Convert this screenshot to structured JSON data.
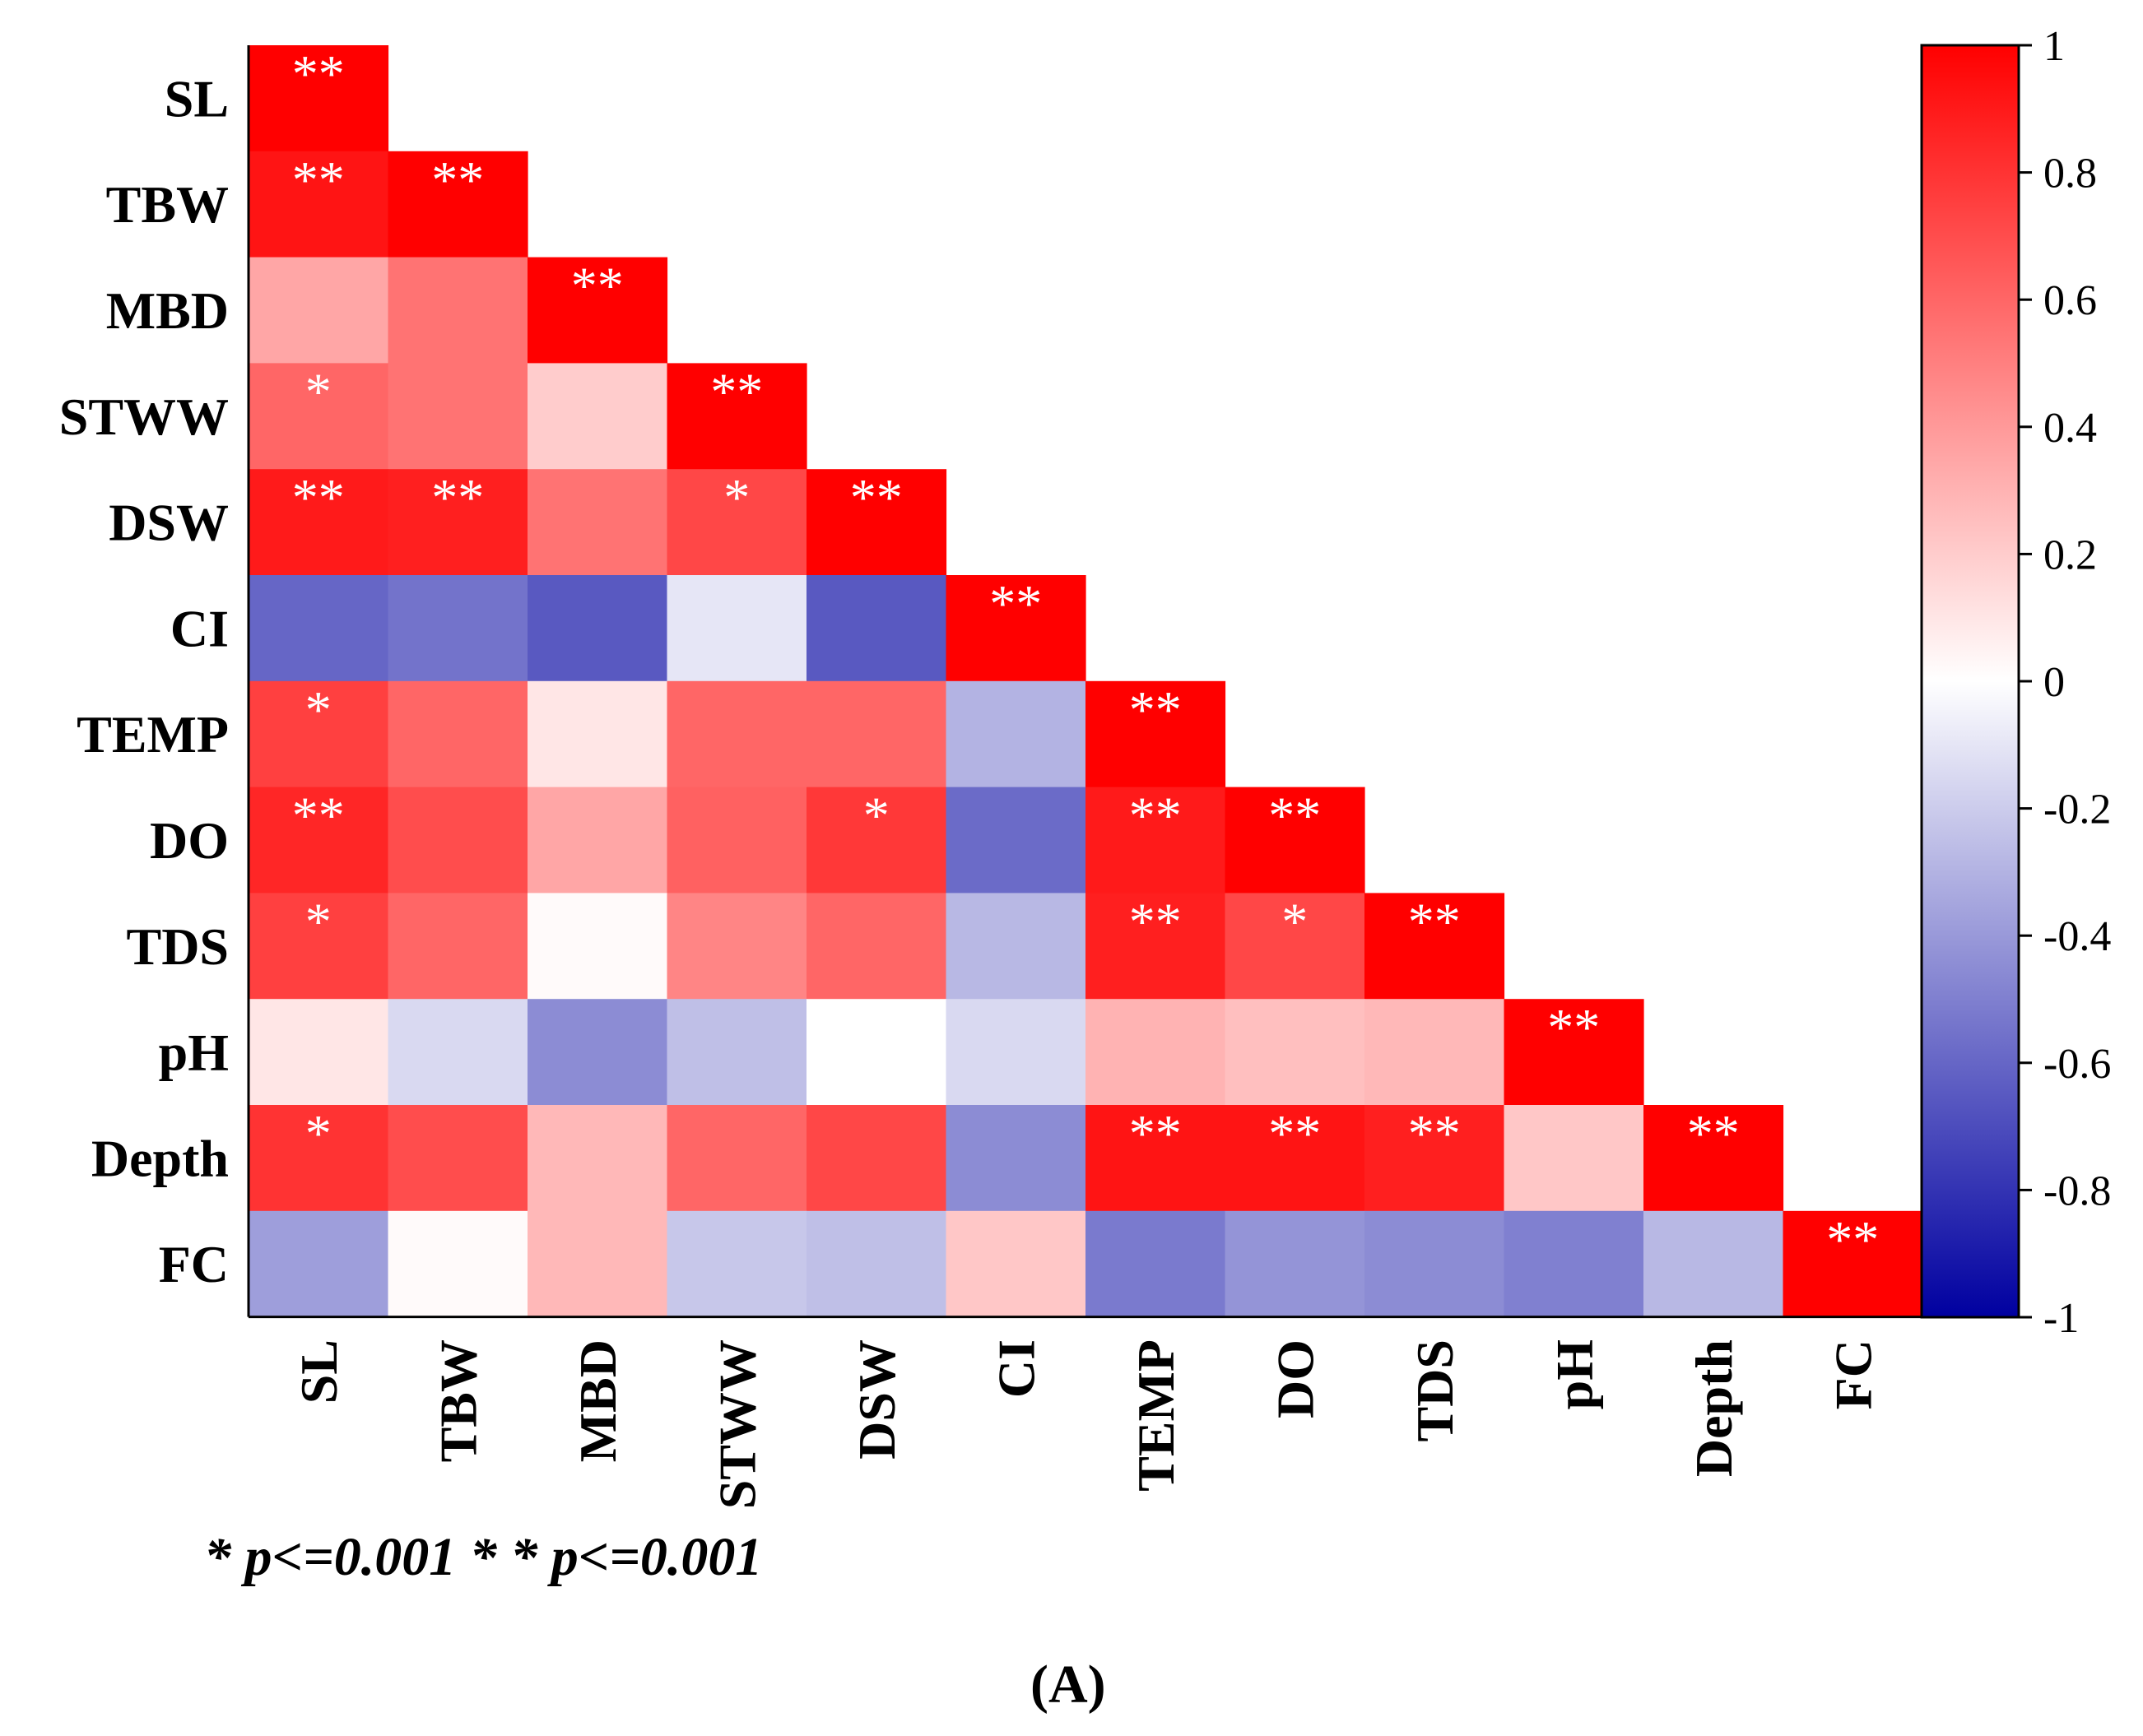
{
  "chart_data": {
    "type": "heatmap",
    "title": "",
    "variables": [
      "SL",
      "TBW",
      "MBD",
      "STWW",
      "DSW",
      "CI",
      "TEMP",
      "DO",
      "TDS",
      "pH",
      "Depth",
      "FC"
    ],
    "matrix_lower": [
      [
        1.0
      ],
      [
        0.92,
        1.0
      ],
      [
        0.35,
        0.55,
        1.0
      ],
      [
        0.6,
        0.55,
        0.2,
        1.0
      ],
      [
        0.9,
        0.88,
        0.55,
        0.72,
        1.0
      ],
      [
        -0.6,
        -0.55,
        -0.65,
        -0.1,
        -0.65,
        1.0
      ],
      [
        0.75,
        0.6,
        0.1,
        0.6,
        0.6,
        -0.3,
        1.0
      ],
      [
        0.85,
        0.7,
        0.35,
        0.62,
        0.78,
        -0.58,
        0.9,
        1.0
      ],
      [
        0.75,
        0.6,
        0.02,
        0.48,
        0.6,
        -0.28,
        0.88,
        0.72,
        1.0
      ],
      [
        0.1,
        -0.15,
        -0.45,
        -0.25,
        0.0,
        -0.15,
        0.3,
        0.25,
        0.28,
        1.0
      ],
      [
        0.8,
        0.7,
        0.28,
        0.6,
        0.72,
        -0.45,
        0.92,
        0.92,
        0.88,
        0.22,
        1.0
      ],
      [
        -0.38,
        0.02,
        0.28,
        -0.22,
        -0.25,
        0.22,
        -0.52,
        -0.42,
        -0.45,
        -0.5,
        -0.28,
        1.0
      ]
    ],
    "significance": [
      [
        "**"
      ],
      [
        "**",
        "**"
      ],
      [
        "",
        "",
        "**"
      ],
      [
        "*",
        "",
        "",
        "**"
      ],
      [
        "**",
        "**",
        "",
        "*",
        "**"
      ],
      [
        "",
        "",
        "",
        "",
        "",
        "**"
      ],
      [
        "*",
        "",
        "",
        "",
        "",
        "",
        "**"
      ],
      [
        "**",
        "",
        "",
        "",
        "*",
        "",
        "**",
        "**"
      ],
      [
        "*",
        "",
        "",
        "",
        "",
        "",
        "**",
        "*",
        "**"
      ],
      [
        "",
        "",
        "",
        "",
        "",
        "",
        "",
        "",
        "",
        "**"
      ],
      [
        "*",
        "",
        "",
        "",
        "",
        "",
        "**",
        "**",
        "**",
        "",
        "**"
      ],
      [
        "",
        "",
        "",
        "",
        "",
        "",
        "",
        "",
        "",
        "",
        "",
        "**"
      ]
    ],
    "colorbar": {
      "range": [
        -1,
        1
      ],
      "ticks": [
        "1",
        "0.8",
        "0.6",
        "0.4",
        "0.2",
        "0",
        "-0.2",
        "-0.4",
        "-0.6",
        "-0.8",
        "-1"
      ],
      "colors": {
        "negative": "#0000a0",
        "zero": "#ffffff",
        "positive": "#ff0000"
      }
    }
  },
  "footnote": "* p<=0.001 * * p<=0.001",
  "panel_label": "(A)"
}
